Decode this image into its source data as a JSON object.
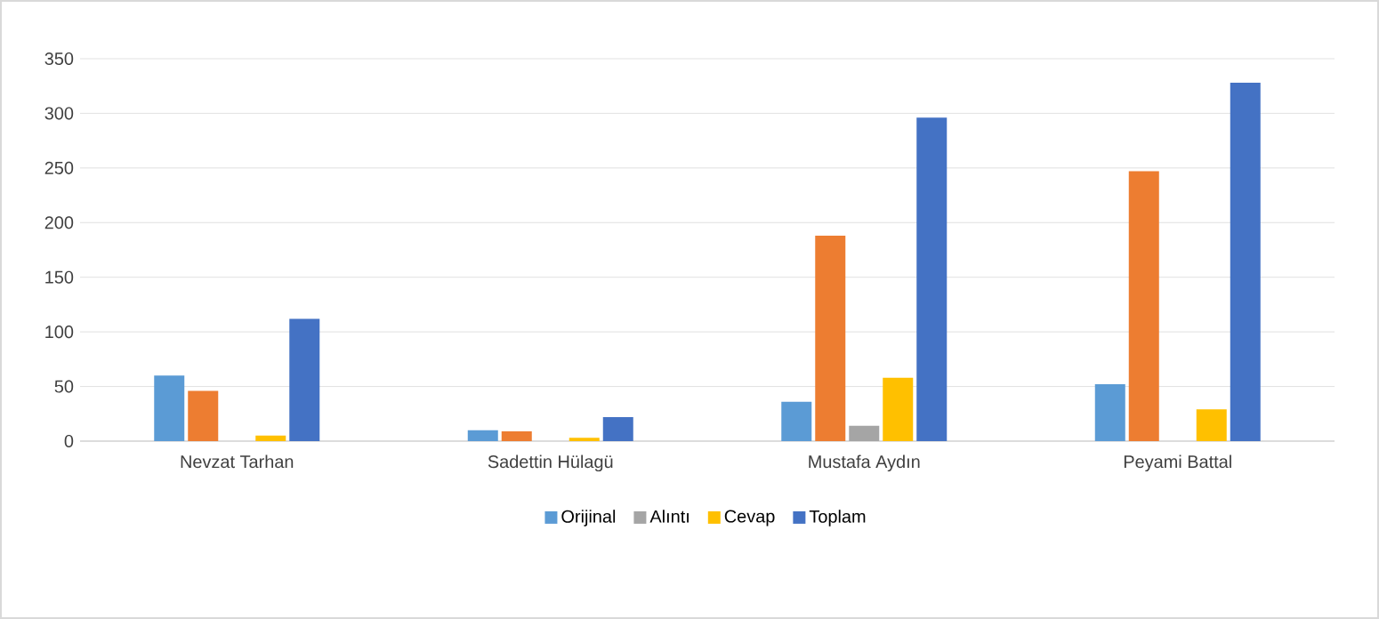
{
  "chart_data": {
    "type": "bar",
    "categories": [
      "Nevzat Tarhan",
      "Sadettin Hülagü",
      "Mustafa Aydın",
      "Peyami Battal"
    ],
    "series": [
      {
        "name": "Orijinal",
        "color": "#5b9bd5",
        "values": [
          60,
          10,
          36,
          52
        ]
      },
      {
        "color": "#ed7d31",
        "values": [
          46,
          9,
          188,
          247
        ]
      },
      {
        "name": "Alıntı",
        "color": "#a5a5a5",
        "values": [
          0,
          0,
          14,
          0
        ]
      },
      {
        "name": "Cevap",
        "color": "#ffc000",
        "values": [
          5,
          3,
          58,
          29
        ]
      },
      {
        "name": "Toplam",
        "color": "#4472c4",
        "values": [
          112,
          22,
          296,
          328
        ]
      }
    ],
    "ylim": [
      0,
      350
    ],
    "yticks": [
      0,
      50,
      100,
      150,
      200,
      250,
      300,
      350
    ],
    "grid": "y",
    "legend": "bottom"
  }
}
